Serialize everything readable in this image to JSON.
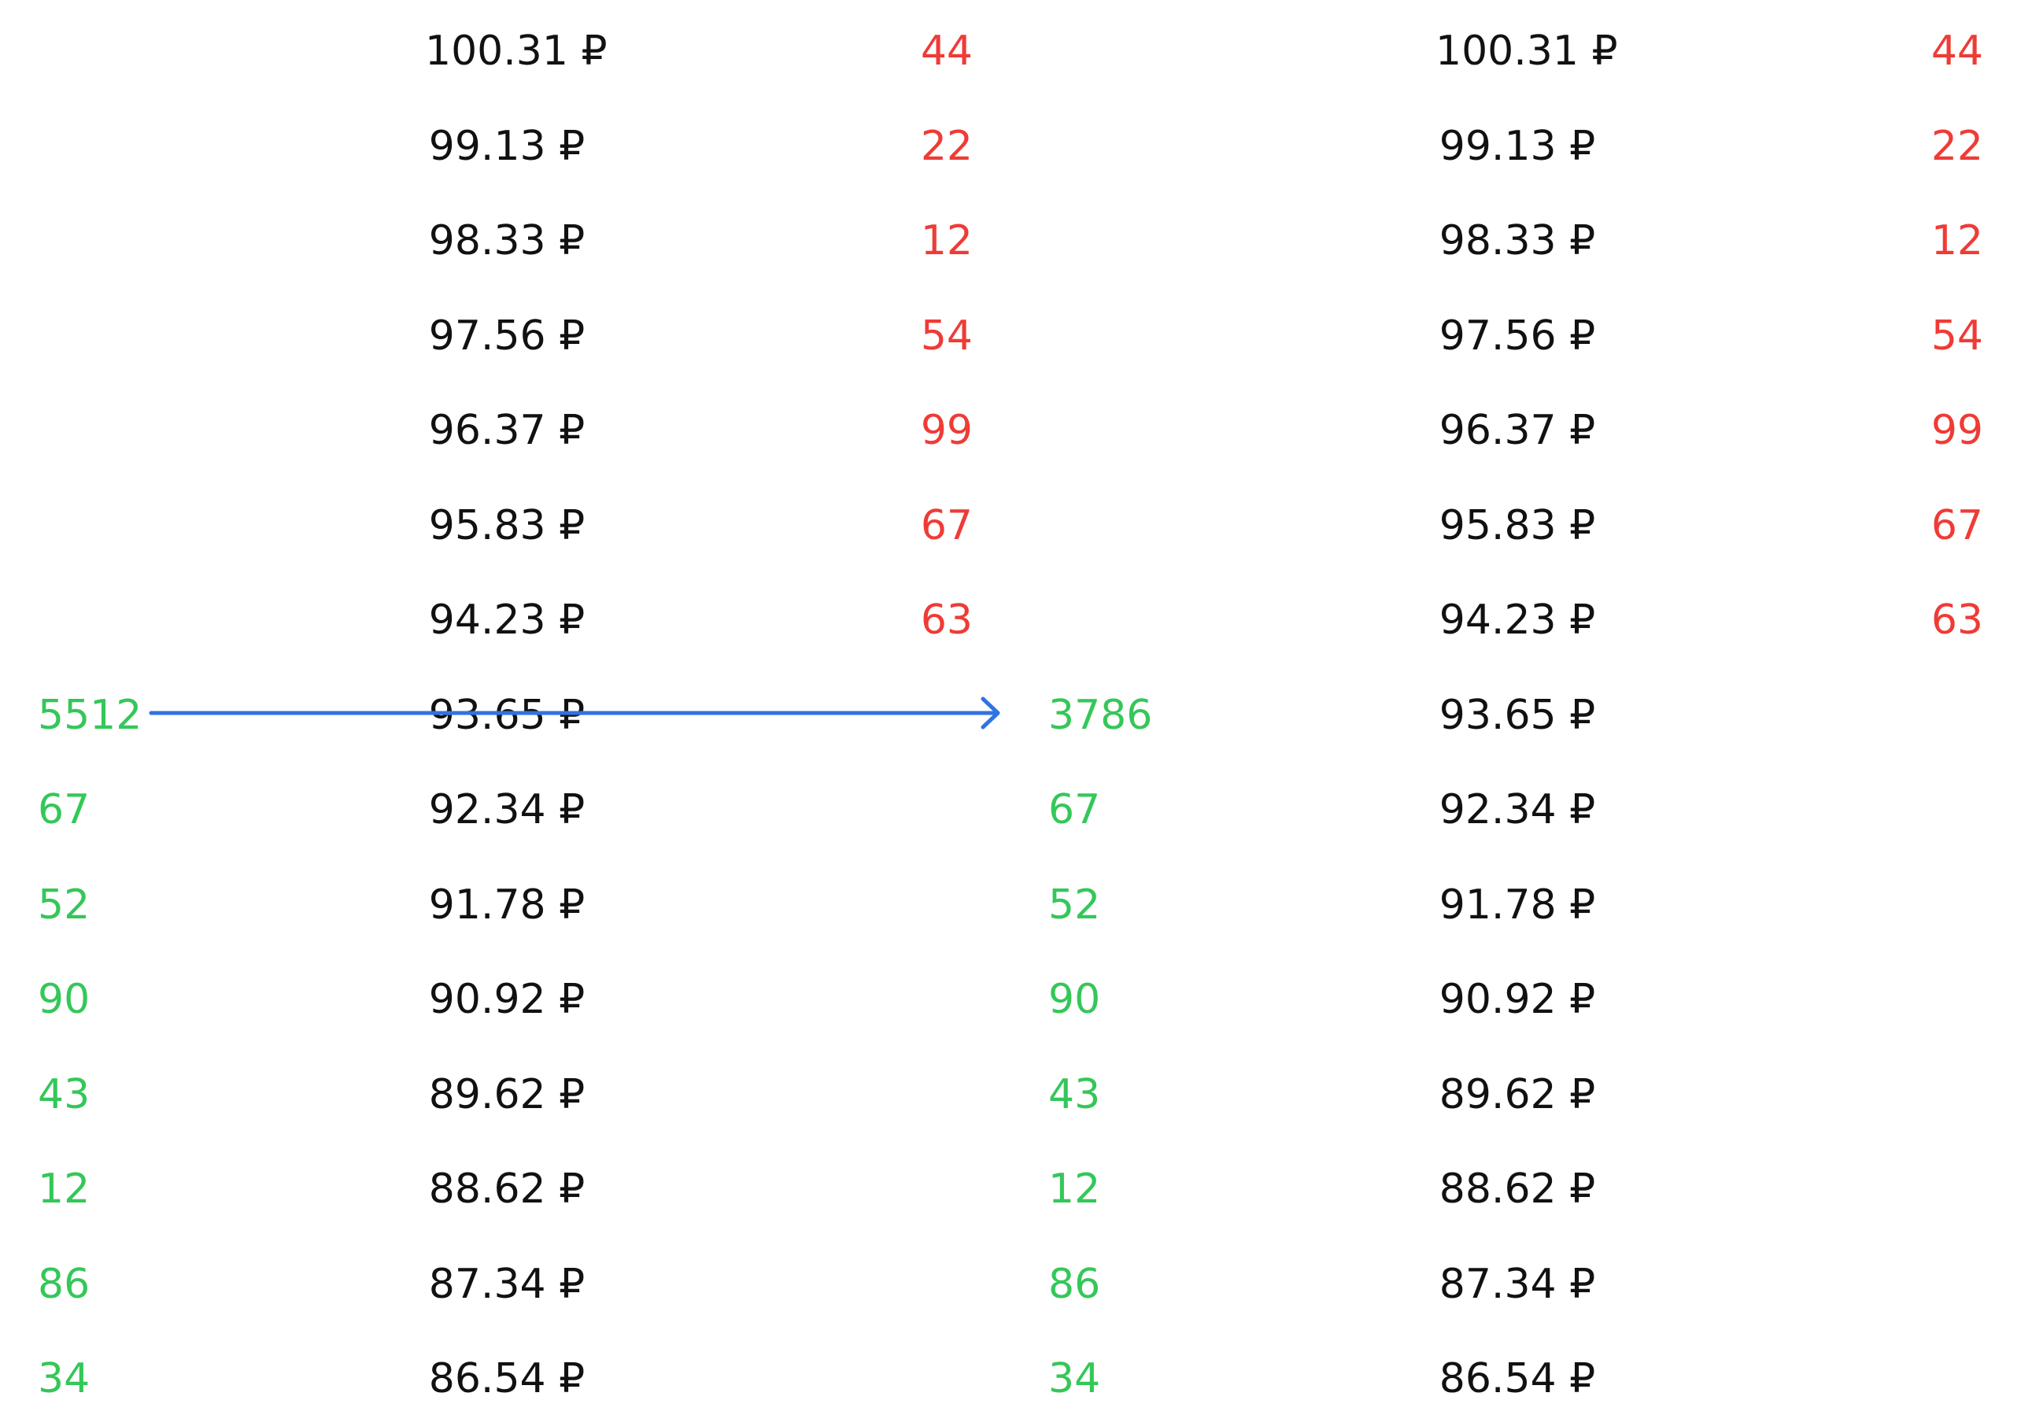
{
  "colors": {
    "bid": "#34c759",
    "ask": "#ef3b36",
    "price": "#111111",
    "arrow": "#2f74e0",
    "background": "#ffffff"
  },
  "books": [
    {
      "name": "left-order-book",
      "rows": [
        {
          "bid": "",
          "price": "100.31 ₽",
          "ask": "44"
        },
        {
          "bid": "",
          "price": "99.13 ₽",
          "ask": "22"
        },
        {
          "bid": "",
          "price": "98.33 ₽",
          "ask": "12"
        },
        {
          "bid": "",
          "price": "97.56 ₽",
          "ask": "54"
        },
        {
          "bid": "",
          "price": "96.37 ₽",
          "ask": "99"
        },
        {
          "bid": "",
          "price": "95.83 ₽",
          "ask": "67"
        },
        {
          "bid": "",
          "price": "94.23 ₽",
          "ask": "63"
        },
        {
          "bid": "5512",
          "price": "93.65 ₽",
          "ask": ""
        },
        {
          "bid": "67",
          "price": "92.34 ₽",
          "ask": ""
        },
        {
          "bid": "52",
          "price": "91.78 ₽",
          "ask": ""
        },
        {
          "bid": "90",
          "price": "90.92 ₽",
          "ask": ""
        },
        {
          "bid": "43",
          "price": "89.62 ₽",
          "ask": ""
        },
        {
          "bid": "12",
          "price": "88.62 ₽",
          "ask": ""
        },
        {
          "bid": "86",
          "price": "87.34 ₽",
          "ask": ""
        },
        {
          "bid": "34",
          "price": "86.54 ₽",
          "ask": ""
        }
      ]
    },
    {
      "name": "right-order-book",
      "rows": [
        {
          "bid": "",
          "price": "100.31 ₽",
          "ask": "44"
        },
        {
          "bid": "",
          "price": "99.13 ₽",
          "ask": "22"
        },
        {
          "bid": "",
          "price": "98.33 ₽",
          "ask": "12"
        },
        {
          "bid": "",
          "price": "97.56 ₽",
          "ask": "54"
        },
        {
          "bid": "",
          "price": "96.37 ₽",
          "ask": "99"
        },
        {
          "bid": "",
          "price": "95.83 ₽",
          "ask": "67"
        },
        {
          "bid": "",
          "price": "94.23 ₽",
          "ask": "63"
        },
        {
          "bid": "3786",
          "price": "93.65 ₽",
          "ask": ""
        },
        {
          "bid": "67",
          "price": "92.34 ₽",
          "ask": ""
        },
        {
          "bid": "52",
          "price": "91.78 ₽",
          "ask": ""
        },
        {
          "bid": "90",
          "price": "90.92 ₽",
          "ask": ""
        },
        {
          "bid": "43",
          "price": "89.62 ₽",
          "ask": ""
        },
        {
          "bid": "12",
          "price": "88.62 ₽",
          "ask": ""
        },
        {
          "bid": "86",
          "price": "87.34 ₽",
          "ask": ""
        },
        {
          "bid": "34",
          "price": "86.54 ₽",
          "ask": ""
        }
      ]
    }
  ],
  "transition": {
    "icon": "arrow-right-icon"
  }
}
